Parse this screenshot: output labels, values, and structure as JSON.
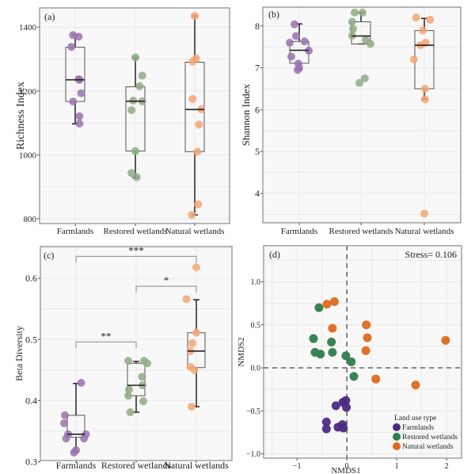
{
  "colors": {
    "farmlands_light": "#9b72b0",
    "restored_light": "#8fac86",
    "natural_light": "#f4a574",
    "farmlands_dark": "#4b2a84",
    "restored_dark": "#2e7d4a",
    "natural_dark": "#dc6a1e",
    "panel_bg": "#f8f8f8",
    "grid": "#e6e6e6",
    "frame": "#8a8a8a"
  },
  "chart_data": [
    {
      "id": "a",
      "type": "box",
      "panel_label": "(a)",
      "ylabel": "Richness Index",
      "xlabel": "",
      "categories": [
        "Farmlands",
        "Restored wetlands",
        "Natural wetlands"
      ],
      "ylim": [
        785,
        1460
      ],
      "yticks": [
        800,
        1000,
        1200,
        1400
      ],
      "ytick_labels": [
        "800",
        "1000",
        "1200",
        "1400"
      ],
      "grid": true,
      "boxes": [
        {
          "min": 1097,
          "q1": 1167,
          "median": 1235,
          "q3": 1337,
          "max": 1375
        },
        {
          "min": 928,
          "q1": 1012,
          "median": 1168,
          "q3": 1213,
          "max": 1305
        },
        {
          "min": 812,
          "q1": 1010,
          "median": 1142,
          "q3": 1290,
          "max": 1435
        }
      ],
      "points": [
        [
          1375,
          1370,
          1338,
          1237,
          1235,
          1193,
          1167,
          1121,
          1098
        ],
        [
          1305,
          1248,
          1215,
          1170,
          1168,
          1140,
          1012,
          943,
          930
        ],
        [
          1435,
          1302,
          1292,
          1175,
          1143,
          1095,
          1010,
          845,
          812
        ]
      ],
      "jitter": [
        [
          -0.05,
          0.08,
          -0.09,
          0.08,
          0.1,
          0.14,
          -0.05,
          0.1,
          0.1
        ],
        [
          0.0,
          0.16,
          0.1,
          -0.05,
          0.16,
          -0.09,
          0.0,
          -0.09,
          0.03
        ],
        [
          0.0,
          0.03,
          -0.05,
          -0.05,
          0.15,
          0.1,
          0.06,
          0.08,
          -0.07
        ]
      ],
      "annotations": []
    },
    {
      "id": "b",
      "type": "box",
      "panel_label": "(b)",
      "ylabel": "Shannon Index",
      "xlabel": "",
      "categories": [
        "Farmlands",
        "Restored wetlands",
        "Natural wetlands"
      ],
      "ylim": [
        3.3,
        8.45
      ],
      "yticks": [
        4,
        5,
        6,
        7,
        8
      ],
      "ytick_labels": [
        "4",
        "5",
        "6",
        "7",
        "8"
      ],
      "grid": true,
      "boxes": [
        {
          "min": 6.95,
          "q1": 7.11,
          "median": 7.42,
          "q3": 7.63,
          "max": 8.05
        },
        {
          "min": 7.57,
          "q1": 7.57,
          "median": 7.76,
          "q3": 8.1,
          "max": 8.32
        },
        {
          "min": 6.25,
          "q1": 6.5,
          "median": 7.54,
          "q3": 7.89,
          "max": 8.18
        }
      ],
      "points": [
        [
          8.04,
          7.76,
          7.63,
          7.6,
          7.41,
          7.27,
          7.1,
          7.0,
          6.95
        ],
        [
          8.32,
          8.32,
          8.1,
          7.93,
          7.77,
          7.67,
          7.57,
          6.75,
          6.64
        ],
        [
          8.2,
          8.15,
          7.89,
          7.6,
          7.54,
          7.2,
          6.5,
          6.25,
          3.52
        ]
      ],
      "jitter": [
        [
          -0.15,
          -0.1,
          0.17,
          -0.3,
          0.3,
          -0.25,
          -0.03,
          0.0,
          -0.05
        ],
        [
          -0.2,
          0.05,
          -0.28,
          -0.25,
          -0.28,
          0.15,
          0.3,
          0.12,
          -0.05
        ],
        [
          -0.26,
          0.18,
          -0.05,
          0.04,
          -0.12,
          -0.33,
          0.02,
          0.02,
          0.0
        ]
      ],
      "annotations": []
    },
    {
      "id": "c",
      "type": "box",
      "panel_label": "(c)",
      "ylabel": "Beta Diversity",
      "xlabel": "",
      "categories": [
        "Farmlands",
        "Restored wetlands",
        "Natural wetlands"
      ],
      "ylim": [
        0.302,
        0.652
      ],
      "yticks": [
        0.3,
        0.4,
        0.5,
        0.6
      ],
      "ytick_labels": [
        "0.3",
        "0.4",
        "0.5",
        "0.6"
      ],
      "grid": true,
      "boxes": [
        {
          "min": 0.317,
          "q1": 0.34,
          "median": 0.345,
          "q3": 0.376,
          "max": 0.428
        },
        {
          "min": 0.381,
          "q1": 0.408,
          "median": 0.425,
          "q3": 0.461,
          "max": 0.464
        },
        {
          "min": 0.39,
          "q1": 0.454,
          "median": 0.481,
          "q3": 0.511,
          "max": 0.565
        }
      ],
      "points": [
        [
          0.429,
          0.376,
          0.363,
          0.345,
          0.345,
          0.338,
          0.338,
          0.319,
          0.315
        ],
        [
          0.465,
          0.465,
          0.461,
          0.439,
          0.425,
          0.418,
          0.408,
          0.399,
          0.381
        ],
        [
          0.618,
          0.566,
          0.511,
          0.494,
          0.481,
          0.455,
          0.45,
          0.39
        ]
      ],
      "jitter": [
        [
          0.13,
          -0.28,
          -0.3,
          -0.2,
          0.25,
          0.2,
          -0.25,
          0.0,
          -0.05
        ],
        [
          -0.2,
          0.2,
          0.28,
          0.15,
          0.16,
          -0.18,
          -0.2,
          0.18,
          -0.15
        ],
        [
          0.0,
          -0.25,
          0.0,
          -0.1,
          -0.15,
          -0.15,
          -0.05,
          -0.12
        ]
      ],
      "annotations": [
        {
          "from": 0,
          "to": 2,
          "label": "***",
          "y": 0.636
        },
        {
          "from": 1,
          "to": 2,
          "label": "*",
          "y": 0.587
        },
        {
          "from": 0,
          "to": 1,
          "label": "**",
          "y": 0.496
        }
      ]
    },
    {
      "id": "d",
      "type": "scatter",
      "panel_label": "(d)",
      "annotation": "Stress= 0.106",
      "xlabel": "NMDS1",
      "ylabel": "NMDS2",
      "xlim": [
        -1.67,
        2.3
      ],
      "ylim": [
        -1.05,
        1.42
      ],
      "xticks": [
        -1,
        0,
        1,
        2
      ],
      "xtick_labels": [
        "−1",
        "0",
        "1",
        "2"
      ],
      "yticks": [
        -1.0,
        -0.5,
        0.0,
        0.5,
        1.0
      ],
      "ytick_labels": [
        "−1.0",
        "−0.5",
        "0.0",
        "0.5",
        "1.0"
      ],
      "reference_lines": {
        "x": 0,
        "y": 0
      },
      "legend": {
        "title": "Land use type",
        "position": "bottom-right"
      },
      "series": [
        {
          "name": "Farmlands",
          "points": [
            [
              -0.02,
              -0.38
            ],
            [
              -0.08,
              -0.4
            ],
            [
              -0.22,
              -0.44
            ],
            [
              -0.01,
              -0.46
            ],
            [
              -0.41,
              -0.63
            ],
            [
              -0.41,
              -0.71
            ],
            [
              -0.18,
              -0.69
            ],
            [
              -0.09,
              -0.66
            ],
            [
              -0.07,
              -0.7
            ]
          ]
        },
        {
          "name": "Restored wetlands",
          "points": [
            [
              -0.56,
              0.7
            ],
            [
              -0.67,
              0.34
            ],
            [
              -0.31,
              0.3
            ],
            [
              -0.64,
              0.18
            ],
            [
              -0.53,
              0.16
            ],
            [
              -0.29,
              0.18
            ],
            [
              -0.02,
              0.14
            ],
            [
              0.09,
              0.07
            ],
            [
              0.14,
              -0.1
            ]
          ]
        },
        {
          "name": "Natural wetlands",
          "points": [
            [
              -0.4,
              0.74
            ],
            [
              -0.25,
              0.77
            ],
            [
              -0.29,
              0.46
            ],
            [
              0.39,
              0.5
            ],
            [
              0.41,
              0.35
            ],
            [
              0.38,
              0.2
            ],
            [
              0.58,
              -0.13
            ],
            [
              1.38,
              -0.2
            ],
            [
              1.98,
              0.32
            ]
          ]
        }
      ]
    }
  ]
}
